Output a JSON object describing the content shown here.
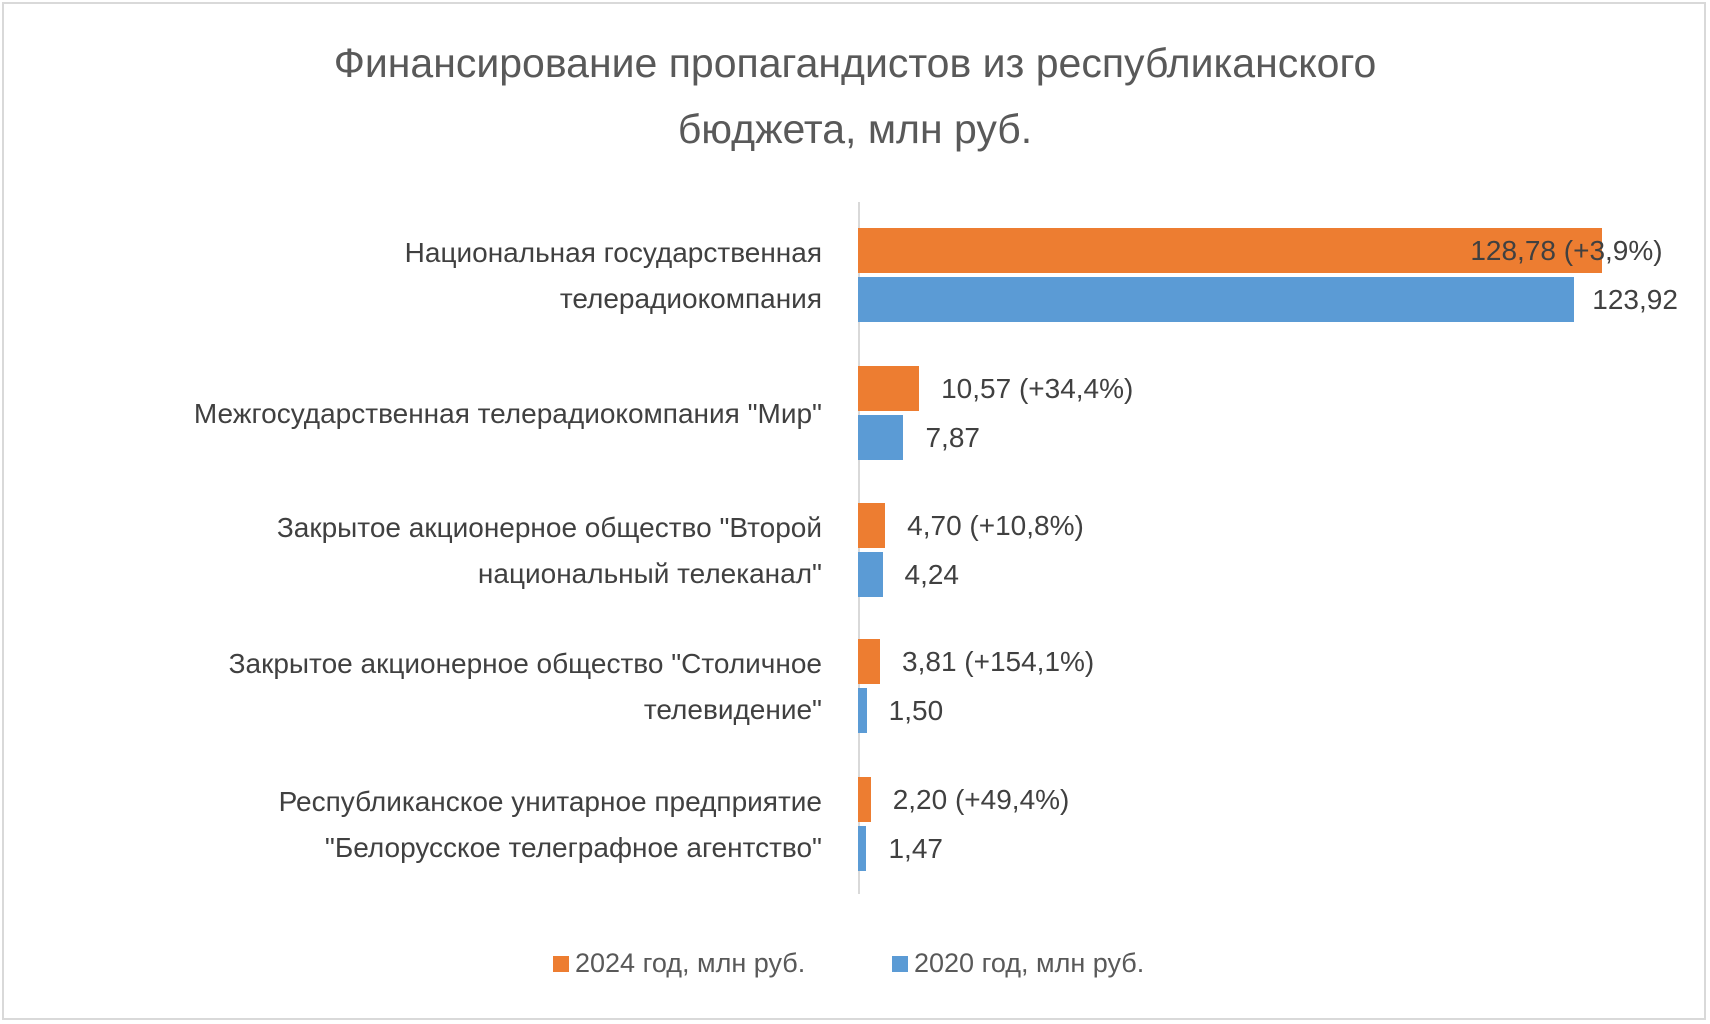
{
  "chart_data": {
    "type": "bar",
    "orientation": "horizontal",
    "title": [
      "Финансирование пропагандистов из республиканского",
      "бюджета, млн руб."
    ],
    "categories": [
      [
        "Национальная государственная",
        "телерадиокомпания"
      ],
      [
        "Межгосударственная телерадиокомпания  \"Мир\""
      ],
      [
        "Закрытое акционерное общество \"Второй",
        "национальный телеканал\""
      ],
      [
        "Закрытое акционерное общество \"Столичное",
        "телевидение\""
      ],
      [
        "Республиканское унитарное предприятие",
        "\"Белорусское телеграфное агентство\""
      ]
    ],
    "series": [
      {
        "name": "2024 год, млн руб.",
        "color": "#ed7d31",
        "values": [
          128.78,
          10.57,
          4.7,
          3.81,
          2.2
        ],
        "labels": [
          "128,78 (+3,9%)",
          "10,57 (+34,4%)",
          "4,70 (+10,8%)",
          "3,81 (+154,1%)",
          "2,20 (+49,4%)"
        ]
      },
      {
        "name": "2020 год, млн руб.",
        "color": "#5b9bd5",
        "values": [
          123.92,
          7.87,
          4.24,
          1.5,
          1.47
        ],
        "labels": [
          "123,92",
          "7,87",
          "4,24",
          "1,50",
          "1,47"
        ]
      }
    ],
    "xlim": [
      0,
      135
    ],
    "grid": false,
    "legend": "bottom"
  }
}
